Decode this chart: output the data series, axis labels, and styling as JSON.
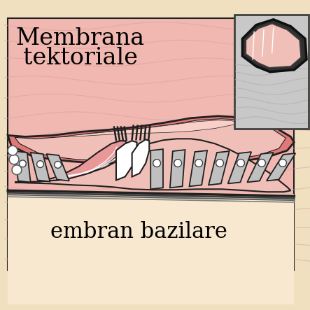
{
  "outer_bg": "#f0e0c0",
  "main_bg": "#f0b8b0",
  "wave_color": "#d8a0a0",
  "pink_dark": "#e07878",
  "pink_medium": "#e89898",
  "pink_light": "#f0c0b8",
  "gray_light": "#c0c0c0",
  "gray_medium": "#a0a0a0",
  "inset_bg": "#c8c8c8",
  "inset_curve": "#b0b0b0",
  "line_dark": "#202020",
  "line_med": "#404040",
  "white_fill": "#ffffff",
  "title1": "Membrana",
  "title2": "tektoriale",
  "label_bottom": "embran bazilare",
  "title_fontsize": 24,
  "label_fontsize": 22
}
